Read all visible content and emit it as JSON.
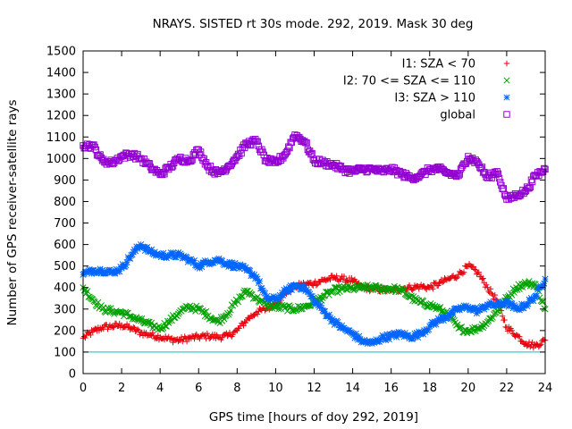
{
  "chart_data": {
    "type": "scatter",
    "title": "NRAYS. SISTED rt 30s mode. 292, 2019. Mask 30 deg",
    "xlabel": "GPS time [hours of doy 292, 2019]",
    "ylabel": "Number of GPS receiver-satellite rays",
    "xlim": [
      0,
      24
    ],
    "ylim": [
      0,
      1500
    ],
    "xticks": [
      "0",
      "2",
      "4",
      "6",
      "8",
      "10",
      "12",
      "14",
      "16",
      "18",
      "20",
      "22",
      "24"
    ],
    "yticks": [
      "0",
      "100",
      "200",
      "300",
      "400",
      "500",
      "600",
      "700",
      "800",
      "900",
      "1000",
      "1100",
      "1200",
      "1300",
      "1400",
      "1500"
    ],
    "reference_line": {
      "y": 100,
      "color": "#00c0c0"
    },
    "legend_position": "top-right",
    "series": [
      {
        "name": "I1: SZA < 70",
        "marker": "+",
        "color": "#e8000b",
        "x": [
          0,
          0.5,
          1,
          1.5,
          2,
          2.5,
          3,
          3.5,
          4,
          4.5,
          5,
          5.5,
          6,
          6.5,
          7,
          7.5,
          8,
          8.5,
          9,
          9.5,
          10,
          10.5,
          11,
          11.5,
          12,
          12.5,
          13,
          13.5,
          14,
          14.5,
          15,
          15.5,
          16,
          16.5,
          17,
          17.5,
          18,
          18.5,
          19,
          19.5,
          20,
          20.5,
          21,
          21.5,
          22,
          22.5,
          23,
          23.5,
          24
        ],
        "y": [
          165,
          195,
          215,
          220,
          225,
          210,
          190,
          180,
          170,
          160,
          155,
          165,
          170,
          175,
          170,
          175,
          200,
          250,
          285,
          300,
          325,
          375,
          405,
          415,
          420,
          435,
          445,
          440,
          430,
          400,
          395,
          390,
          385,
          395,
          400,
          405,
          400,
          420,
          440,
          460,
          500,
          470,
          400,
          340,
          215,
          180,
          140,
          130,
          155
        ]
      },
      {
        "name": "I2: 70 <= SZA <= 110",
        "marker": "x",
        "color": "#00a000",
        "x": [
          0,
          0.5,
          1,
          1.5,
          2,
          2.5,
          3,
          3.5,
          4,
          4.5,
          5,
          5.5,
          6,
          6.5,
          7,
          7.5,
          8,
          8.5,
          9,
          9.5,
          10,
          10.5,
          11,
          11.5,
          12,
          12.5,
          13,
          13.5,
          14,
          14.5,
          15,
          15.5,
          16,
          16.5,
          17,
          17.5,
          18,
          18.5,
          19,
          19.5,
          20,
          20.5,
          21,
          21.5,
          22,
          22.5,
          23,
          23.5,
          24
        ],
        "y": [
          400,
          345,
          300,
          290,
          285,
          265,
          245,
          225,
          210,
          245,
          285,
          310,
          300,
          270,
          240,
          280,
          340,
          385,
          350,
          320,
          310,
          305,
          300,
          310,
          330,
          360,
          385,
          395,
          395,
          400,
          400,
          395,
          395,
          390,
          355,
          330,
          320,
          300,
          270,
          210,
          200,
          210,
          240,
          290,
          350,
          400,
          420,
          415,
          300
        ]
      },
      {
        "name": "I3: SZA > 110",
        "marker": "*",
        "color": "#0066ff",
        "x": [
          0,
          0.5,
          1,
          1.5,
          2,
          2.5,
          3,
          3.5,
          4,
          4.5,
          5,
          5.5,
          6,
          6.5,
          7,
          7.5,
          8,
          8.5,
          9,
          9.5,
          10,
          10.5,
          11,
          11.5,
          12,
          12.5,
          13,
          13.5,
          14,
          14.5,
          15,
          15.5,
          16,
          16.5,
          17,
          17.5,
          18,
          18.5,
          19,
          19.5,
          20,
          20.5,
          21,
          21.5,
          22,
          22.5,
          23,
          23.5,
          24
        ],
        "y": [
          460,
          480,
          480,
          470,
          490,
          550,
          600,
          565,
          550,
          550,
          550,
          530,
          500,
          520,
          530,
          510,
          500,
          480,
          450,
          350,
          345,
          380,
          410,
          400,
          340,
          290,
          245,
          210,
          185,
          150,
          140,
          165,
          175,
          185,
          170,
          185,
          220,
          250,
          270,
          300,
          310,
          290,
          320,
          320,
          330,
          300,
          320,
          360,
          440
        ]
      },
      {
        "name": "global",
        "marker": "square",
        "color": "#9400d3",
        "x": [
          0,
          0.5,
          1,
          1.5,
          2,
          2.5,
          3,
          3.5,
          4,
          4.5,
          5,
          5.5,
          6,
          6.5,
          7,
          7.5,
          8,
          8.5,
          9,
          9.5,
          10,
          10.5,
          11,
          11.5,
          12,
          12.5,
          13,
          13.5,
          14,
          14.5,
          15,
          15.5,
          16,
          16.5,
          17,
          17.5,
          18,
          18.5,
          19,
          19.5,
          20,
          20.5,
          21,
          21.5,
          22,
          22.5,
          23,
          23.5,
          24
        ],
        "y": [
          1060,
          1060,
          990,
          980,
          1010,
          1020,
          1000,
          960,
          925,
          960,
          1000,
          990,
          1040,
          960,
          930,
          960,
          1010,
          1070,
          1080,
          990,
          980,
          1020,
          1110,
          1080,
          990,
          980,
          970,
          950,
          940,
          950,
          950,
          940,
          950,
          930,
          910,
          920,
          950,
          950,
          930,
          920,
          1010,
          980,
          910,
          940,
          810,
          830,
          850,
          920,
          950
        ]
      }
    ]
  }
}
